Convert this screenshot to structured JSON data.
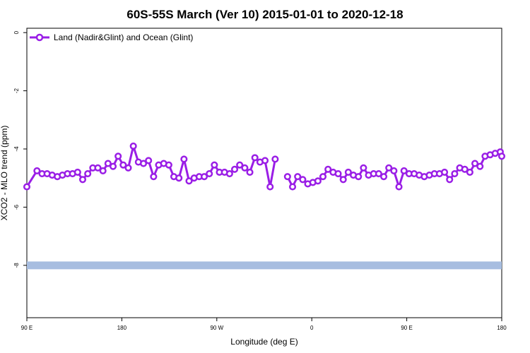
{
  "chart_data": {
    "type": "line",
    "title": "60S-55S March (Ver 10)   2015-01-01 to 2020-12-18",
    "xlabel": "Longitude (deg E)",
    "ylabel": "XCO2 - MLO trend (ppm)",
    "x_ticks": [
      {
        "value": 90,
        "label": "90 E"
      },
      {
        "value": 180,
        "label": "180"
      },
      {
        "value": 270,
        "label": "90 W"
      },
      {
        "value": 360,
        "label": "0"
      },
      {
        "value": 450,
        "label": "90 E"
      },
      {
        "value": 540,
        "label": "180"
      }
    ],
    "y_ticks": [
      {
        "value": 0,
        "label": "0"
      },
      {
        "value": -2,
        "label": "-2"
      },
      {
        "value": -4,
        "label": "-4"
      },
      {
        "value": -6,
        "label": "-6"
      },
      {
        "value": -8,
        "label": "-8"
      }
    ],
    "xlim": [
      90,
      540
    ],
    "ylim": [
      -9.8,
      0.15
    ],
    "grid": false,
    "legend_position": "top-left",
    "series": [
      {
        "name": "Land (Nadir&Glint) and Ocean (Glint)",
        "color": "#9a1ee6",
        "marker": "open-circle",
        "points": [
          [
            90.0,
            -5.3
          ],
          [
            99.6,
            -4.75
          ],
          [
            104.4,
            -4.85
          ],
          [
            109.2,
            -4.85
          ],
          [
            114.0,
            -4.9
          ],
          [
            118.9,
            -4.95
          ],
          [
            123.7,
            -4.9
          ],
          [
            128.5,
            -4.85
          ],
          [
            133.3,
            -4.85
          ],
          [
            138.1,
            -4.8
          ],
          [
            142.9,
            -5.05
          ],
          [
            147.7,
            -4.85
          ],
          [
            152.5,
            -4.65
          ],
          [
            157.3,
            -4.65
          ],
          [
            162.1,
            -4.75
          ],
          [
            166.9,
            -4.5
          ],
          [
            171.7,
            -4.6
          ],
          [
            176.5,
            -4.25
          ],
          [
            181.3,
            -4.55
          ],
          [
            186.1,
            -4.65
          ],
          [
            190.9,
            -3.9
          ],
          [
            195.7,
            -4.45
          ],
          [
            200.5,
            -4.5
          ],
          [
            205.3,
            -4.4
          ],
          [
            210.1,
            -4.95
          ],
          [
            214.9,
            -4.55
          ],
          [
            219.7,
            -4.5
          ],
          [
            224.5,
            -4.55
          ],
          [
            229.3,
            -4.95
          ],
          [
            234.1,
            -5.0
          ],
          [
            238.9,
            -4.35
          ],
          [
            243.7,
            -5.1
          ],
          [
            248.5,
            -5.0
          ],
          [
            253.3,
            -4.95
          ],
          [
            258.1,
            -4.95
          ],
          [
            262.9,
            -4.85
          ],
          [
            267.7,
            -4.55
          ],
          [
            272.5,
            -4.8
          ],
          [
            277.3,
            -4.8
          ],
          [
            282.1,
            -4.85
          ],
          [
            286.9,
            -4.7
          ],
          [
            291.7,
            -4.55
          ],
          [
            296.5,
            -4.65
          ],
          [
            301.3,
            -4.8
          ],
          [
            306.1,
            -4.3
          ],
          [
            310.9,
            -4.45
          ],
          [
            315.7,
            -4.4
          ],
          [
            320.5,
            -5.3
          ],
          [
            325.3,
            -4.35
          ],
          null,
          [
            337.0,
            -4.95
          ],
          [
            341.8,
            -5.3
          ],
          [
            346.6,
            -4.95
          ],
          [
            351.4,
            -5.05
          ],
          [
            356.2,
            -5.2
          ],
          [
            361.0,
            -5.15
          ],
          [
            365.8,
            -5.1
          ],
          [
            370.6,
            -4.95
          ],
          [
            375.4,
            -4.7
          ],
          [
            380.2,
            -4.8
          ],
          [
            385.0,
            -4.85
          ],
          [
            389.8,
            -5.05
          ],
          [
            394.6,
            -4.8
          ],
          [
            399.4,
            -4.9
          ],
          [
            404.2,
            -4.95
          ],
          [
            409.0,
            -4.65
          ],
          [
            413.8,
            -4.9
          ],
          [
            418.6,
            -4.85
          ],
          [
            423.4,
            -4.85
          ],
          [
            428.2,
            -4.95
          ],
          [
            433.0,
            -4.65
          ],
          [
            437.8,
            -4.75
          ],
          [
            442.6,
            -5.3
          ],
          [
            447.4,
            -4.75
          ],
          [
            452.2,
            -4.85
          ],
          [
            457.0,
            -4.85
          ],
          [
            461.8,
            -4.9
          ],
          [
            466.6,
            -4.95
          ],
          [
            471.4,
            -4.9
          ],
          [
            476.2,
            -4.85
          ],
          [
            481.0,
            -4.85
          ],
          [
            485.8,
            -4.8
          ],
          [
            490.6,
            -5.05
          ],
          [
            495.4,
            -4.85
          ],
          [
            500.2,
            -4.65
          ],
          [
            505.0,
            -4.7
          ],
          [
            509.8,
            -4.8
          ],
          [
            514.6,
            -4.5
          ],
          [
            519.4,
            -4.6
          ],
          [
            524.2,
            -4.25
          ],
          [
            529.0,
            -4.2
          ],
          [
            533.8,
            -4.15
          ],
          [
            538.6,
            -4.1
          ],
          [
            540.0,
            -4.25
          ]
        ]
      }
    ],
    "band": {
      "y": -8.0,
      "color": "#a7bde0"
    }
  }
}
